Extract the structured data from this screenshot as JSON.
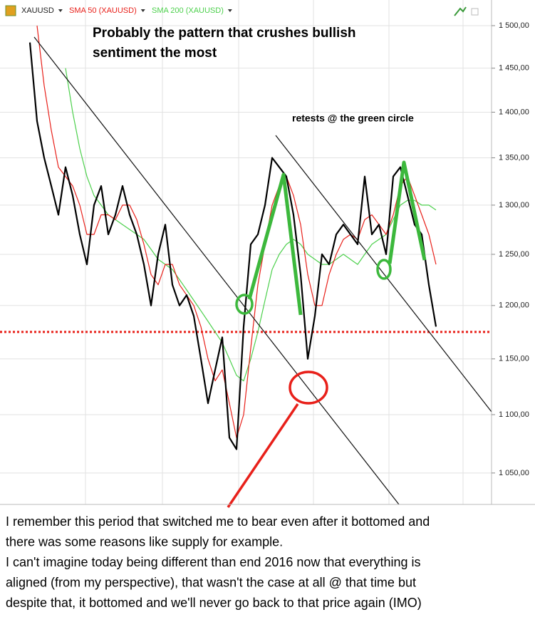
{
  "chart_data": {
    "type": "line",
    "title": [
      "Probably the pattern that crushes bullish",
      "sentiment the most"
    ],
    "annotation": "retests @ the green circle",
    "caption": [
      "I remember this period that switched me to bear even after it bottomed and",
      "there was some reasons like supply for example.",
      "I can't imagine today being different than end 2016 now that everything is",
      "aligned (from my perspective), that wasn't the case at all @ that time but",
      "despite that, it bottomed and we'll never go back to that price again (IMO)"
    ],
    "log_scale": true,
    "grid": true,
    "ylim": [
      1024,
      1531
    ],
    "yticks": [
      {
        "value": 1050,
        "label": "1 050,00"
      },
      {
        "value": 1100,
        "label": "1 100,00"
      },
      {
        "value": 1150,
        "label": "1 150,00"
      },
      {
        "value": 1200,
        "label": "1 200,00"
      },
      {
        "value": 1250,
        "label": "1 250,00"
      },
      {
        "value": 1300,
        "label": "1 300,00"
      },
      {
        "value": 1350,
        "label": "1 350,00"
      },
      {
        "value": 1400,
        "label": "1 400,00"
      },
      {
        "value": 1450,
        "label": "1 450,00"
      },
      {
        "value": 1500,
        "label": "1 500,00"
      }
    ],
    "reference_line": {
      "value": 1175,
      "color": "#e8201a"
    },
    "series": [
      {
        "name": "XAUUSD",
        "color": "#000000",
        "values": [
          1480,
          1390,
          1350,
          1320,
          1290,
          1340,
          1310,
          1270,
          1240,
          1300,
          1320,
          1270,
          1290,
          1320,
          1290,
          1270,
          1240,
          1200,
          1250,
          1280,
          1220,
          1200,
          1210,
          1190,
          1150,
          1110,
          1140,
          1170,
          1080,
          1070,
          1180,
          1260,
          1270,
          1300,
          1350,
          1340,
          1330,
          1290,
          1230,
          1150,
          1190,
          1250,
          1240,
          1270,
          1280,
          1270,
          1260,
          1330,
          1270,
          1280,
          1250,
          1330,
          1340,
          1310,
          1280,
          1270,
          1220,
          1180
        ]
      },
      {
        "name": "SMA 50 (XAUUSD)",
        "color": "#e8201a",
        "values": [
          null,
          1500,
          1430,
          1380,
          1340,
          1330,
          1320,
          1300,
          1270,
          1270,
          1290,
          1290,
          1285,
          1300,
          1300,
          1285,
          1260,
          1230,
          1220,
          1240,
          1240,
          1220,
          1210,
          1200,
          1180,
          1150,
          1130,
          1140,
          1110,
          1080,
          1100,
          1160,
          1220,
          1260,
          1300,
          1320,
          1330,
          1310,
          1280,
          1230,
          1200,
          1200,
          1230,
          1250,
          1265,
          1270,
          1265,
          1285,
          1290,
          1280,
          1270,
          1290,
          1320,
          1330,
          1310,
          1290,
          1270,
          1240
        ]
      },
      {
        "name": "SMA 200 (XAUUSD)",
        "color": "#4cd04c",
        "values": [
          null,
          null,
          null,
          null,
          null,
          1450,
          1400,
          1360,
          1330,
          1310,
          1300,
          1290,
          1285,
          1280,
          1275,
          1270,
          1265,
          1255,
          1245,
          1240,
          1235,
          1225,
          1215,
          1205,
          1195,
          1185,
          1175,
          1165,
          1150,
          1135,
          1130,
          1150,
          1175,
          1205,
          1235,
          1250,
          1260,
          1265,
          1260,
          1250,
          1245,
          1240,
          1240,
          1245,
          1250,
          1245,
          1240,
          1250,
          1260,
          1265,
          1270,
          1285,
          1300,
          1305,
          1305,
          1300,
          1300,
          1295
        ]
      }
    ]
  }
}
